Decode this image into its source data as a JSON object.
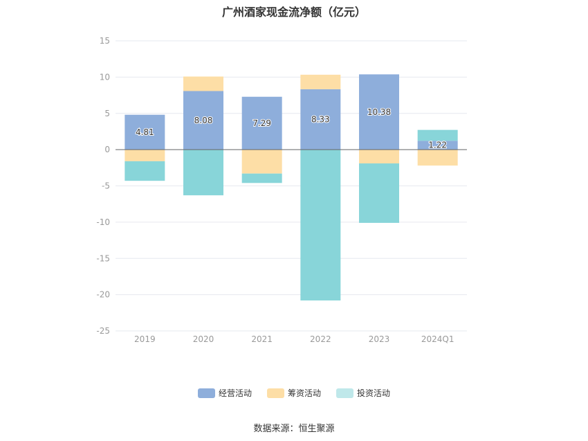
{
  "chart_data": {
    "type": "bar",
    "stacked": true,
    "title": "广州酒家现金流净额（亿元）",
    "categories": [
      "2019",
      "2020",
      "2021",
      "2022",
      "2023",
      "2024Q1"
    ],
    "series": [
      {
        "name": "经营活动",
        "color": "#8eaedb",
        "values": [
          4.81,
          8.08,
          7.29,
          8.33,
          10.38,
          1.22
        ],
        "labels": [
          "4.81",
          "8.08",
          "7.29",
          "8.33",
          "10.38",
          "1.22"
        ]
      },
      {
        "name": "筹资活动",
        "color": "#fddea6",
        "values": [
          -1.6,
          2.0,
          -3.3,
          2.0,
          -1.9,
          -2.2
        ]
      },
      {
        "name": "投资活动",
        "color": "#88d5d9",
        "values": [
          -2.7,
          -6.3,
          -1.3,
          -20.8,
          -8.2,
          1.5
        ]
      }
    ],
    "ylim": [
      -25,
      15
    ],
    "yticks": [
      15,
      10,
      5,
      0,
      -5,
      -10,
      -15,
      -20,
      -25
    ],
    "grid": true,
    "legend_position": "bottom"
  },
  "source_text": "数据来源：恒生聚源"
}
